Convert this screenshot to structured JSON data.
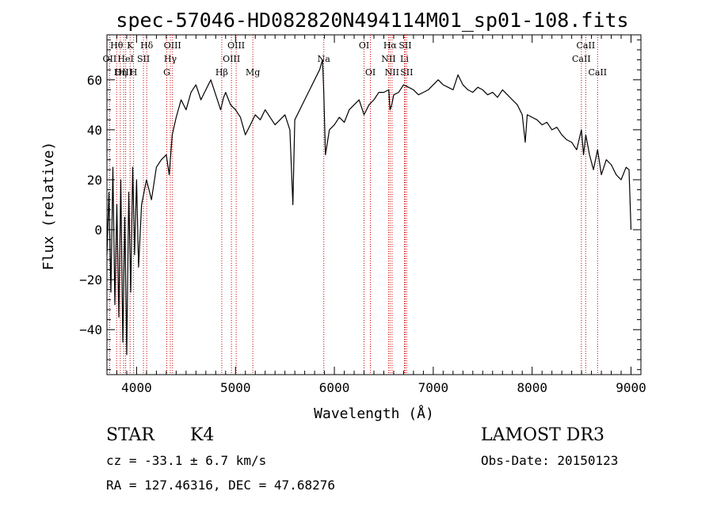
{
  "chart_data": {
    "type": "line",
    "title": "spec-57046-HD082820N494114M01_sp01-108.fits",
    "xlabel": "Wavelength (Å)",
    "ylabel": "Flux (relative)",
    "xlim": [
      3700,
      9100
    ],
    "ylim": [
      -58,
      78
    ],
    "x_ticks": [
      4000,
      5000,
      6000,
      7000,
      8000,
      9000
    ],
    "y_ticks": [
      -40,
      -20,
      0,
      20,
      40,
      60
    ],
    "x_minor_step": 100,
    "y_minor_step": 4,
    "grid": false,
    "series": [
      {
        "x": [
          3700,
          3720,
          3740,
          3760,
          3780,
          3800,
          3820,
          3840,
          3860,
          3880,
          3900,
          3920,
          3940,
          3960,
          3980,
          4000,
          4020,
          4050,
          4100,
          4150,
          4200,
          4250,
          4300,
          4330,
          4360,
          4400,
          4450,
          4500,
          4550,
          4600,
          4650,
          4700,
          4750,
          4800,
          4850,
          4880,
          4900,
          4950,
          5000,
          5050,
          5100,
          5150,
          5200,
          5250,
          5300,
          5350,
          5400,
          5450,
          5500,
          5550,
          5580,
          5600,
          5650,
          5700,
          5750,
          5800,
          5850,
          5880,
          5893,
          5910,
          5950,
          6000,
          6050,
          6100,
          6150,
          6200,
          6250,
          6300,
          6350,
          6400,
          6450,
          6500,
          6550,
          6563,
          6580,
          6600,
          6650,
          6700,
          6750,
          6800,
          6850,
          6900,
          6950,
          7000,
          7050,
          7100,
          7150,
          7200,
          7250,
          7300,
          7350,
          7400,
          7450,
          7500,
          7550,
          7600,
          7650,
          7700,
          7750,
          7800,
          7850,
          7900,
          7930,
          7950,
          8000,
          8050,
          8100,
          8150,
          8200,
          8250,
          8300,
          8350,
          8400,
          8450,
          8498,
          8520,
          8542,
          8580,
          8620,
          8662,
          8700,
          8750,
          8800,
          8850,
          8900,
          8950,
          8980,
          9000
        ],
        "y": [
          -10,
          15,
          -25,
          25,
          -30,
          10,
          -35,
          20,
          -45,
          5,
          -50,
          15,
          -25,
          25,
          -10,
          20,
          -15,
          10,
          20,
          12,
          25,
          28,
          30,
          22,
          38,
          45,
          52,
          48,
          55,
          58,
          52,
          56,
          60,
          54,
          48,
          53,
          55,
          50,
          48,
          45,
          38,
          42,
          46,
          44,
          48,
          45,
          42,
          44,
          46,
          40,
          10,
          44,
          48,
          52,
          56,
          60,
          64,
          68,
          55,
          30,
          40,
          42,
          45,
          43,
          48,
          50,
          52,
          46,
          50,
          52,
          55,
          55,
          56,
          48,
          50,
          54,
          55,
          58,
          57,
          56,
          54,
          55,
          56,
          58,
          60,
          58,
          57,
          56,
          62,
          58,
          56,
          55,
          57,
          56,
          54,
          55,
          53,
          56,
          54,
          52,
          50,
          46,
          35,
          46,
          45,
          44,
          42,
          43,
          40,
          41,
          38,
          36,
          35,
          32,
          40,
          30,
          38,
          30,
          24,
          32,
          22,
          28,
          26,
          22,
          20,
          25,
          24,
          0
        ]
      }
    ],
    "line_markers": [
      {
        "label": "Hθ",
        "wavelength": 3798,
        "row": 0
      },
      {
        "label": "OII",
        "wavelength": 3727,
        "row": 1
      },
      {
        "label": "OIII",
        "wavelength": 3869,
        "row": 2
      },
      {
        "label": "Hη",
        "wavelength": 3835,
        "row": 2
      },
      {
        "label": "HeI",
        "wavelength": 3889,
        "row": 1
      },
      {
        "label": "K",
        "wavelength": 3934,
        "row": 0
      },
      {
        "label": "SII",
        "wavelength": 4069,
        "row": 1
      },
      {
        "label": "H",
        "wavelength": 3969,
        "row": 2
      },
      {
        "label": "Hδ",
        "wavelength": 4102,
        "row": 0
      },
      {
        "label": "OIII",
        "wavelength": 4363,
        "row": 0
      },
      {
        "label": "Hγ",
        "wavelength": 4341,
        "row": 1
      },
      {
        "label": "G",
        "wavelength": 4305,
        "row": 2
      },
      {
        "label": "Hβ",
        "wavelength": 4861,
        "row": 2
      },
      {
        "label": "OIII",
        "wavelength": 5007,
        "row": 0
      },
      {
        "label": "OIII",
        "wavelength": 4959,
        "row": 1
      },
      {
        "label": "Mg",
        "wavelength": 5175,
        "row": 2
      },
      {
        "label": "Na",
        "wavelength": 5893,
        "row": 1
      },
      {
        "label": "OI",
        "wavelength": 6300,
        "row": 0
      },
      {
        "label": "OI",
        "wavelength": 6364,
        "row": 2
      },
      {
        "label": "Hα",
        "wavelength": 6563,
        "row": 0
      },
      {
        "label": "NII",
        "wavelength": 6548,
        "row": 1
      },
      {
        "label": "NII",
        "wavelength": 6583,
        "row": 2
      },
      {
        "label": "SII",
        "wavelength": 6716,
        "row": 0
      },
      {
        "label": "Li",
        "wavelength": 6708,
        "row": 1
      },
      {
        "label": "SII",
        "wavelength": 6731,
        "row": 2
      },
      {
        "label": "CaII",
        "wavelength": 8542,
        "row": 0
      },
      {
        "label": "CaII",
        "wavelength": 8498,
        "row": 1
      },
      {
        "label": "CaII",
        "wavelength": 8662,
        "row": 2
      }
    ]
  },
  "info": {
    "class": "STAR",
    "subclass": "K4",
    "survey": "LAMOST DR3",
    "redshift": "cz = -33.1 ± 6.7 km/s",
    "obs_date": "Obs-Date: 20150123",
    "coords": "RA = 127.46316, DEC =  47.68276"
  },
  "colors": {
    "line": "#000000",
    "marker": "#cc0000",
    "axis": "#000000"
  }
}
